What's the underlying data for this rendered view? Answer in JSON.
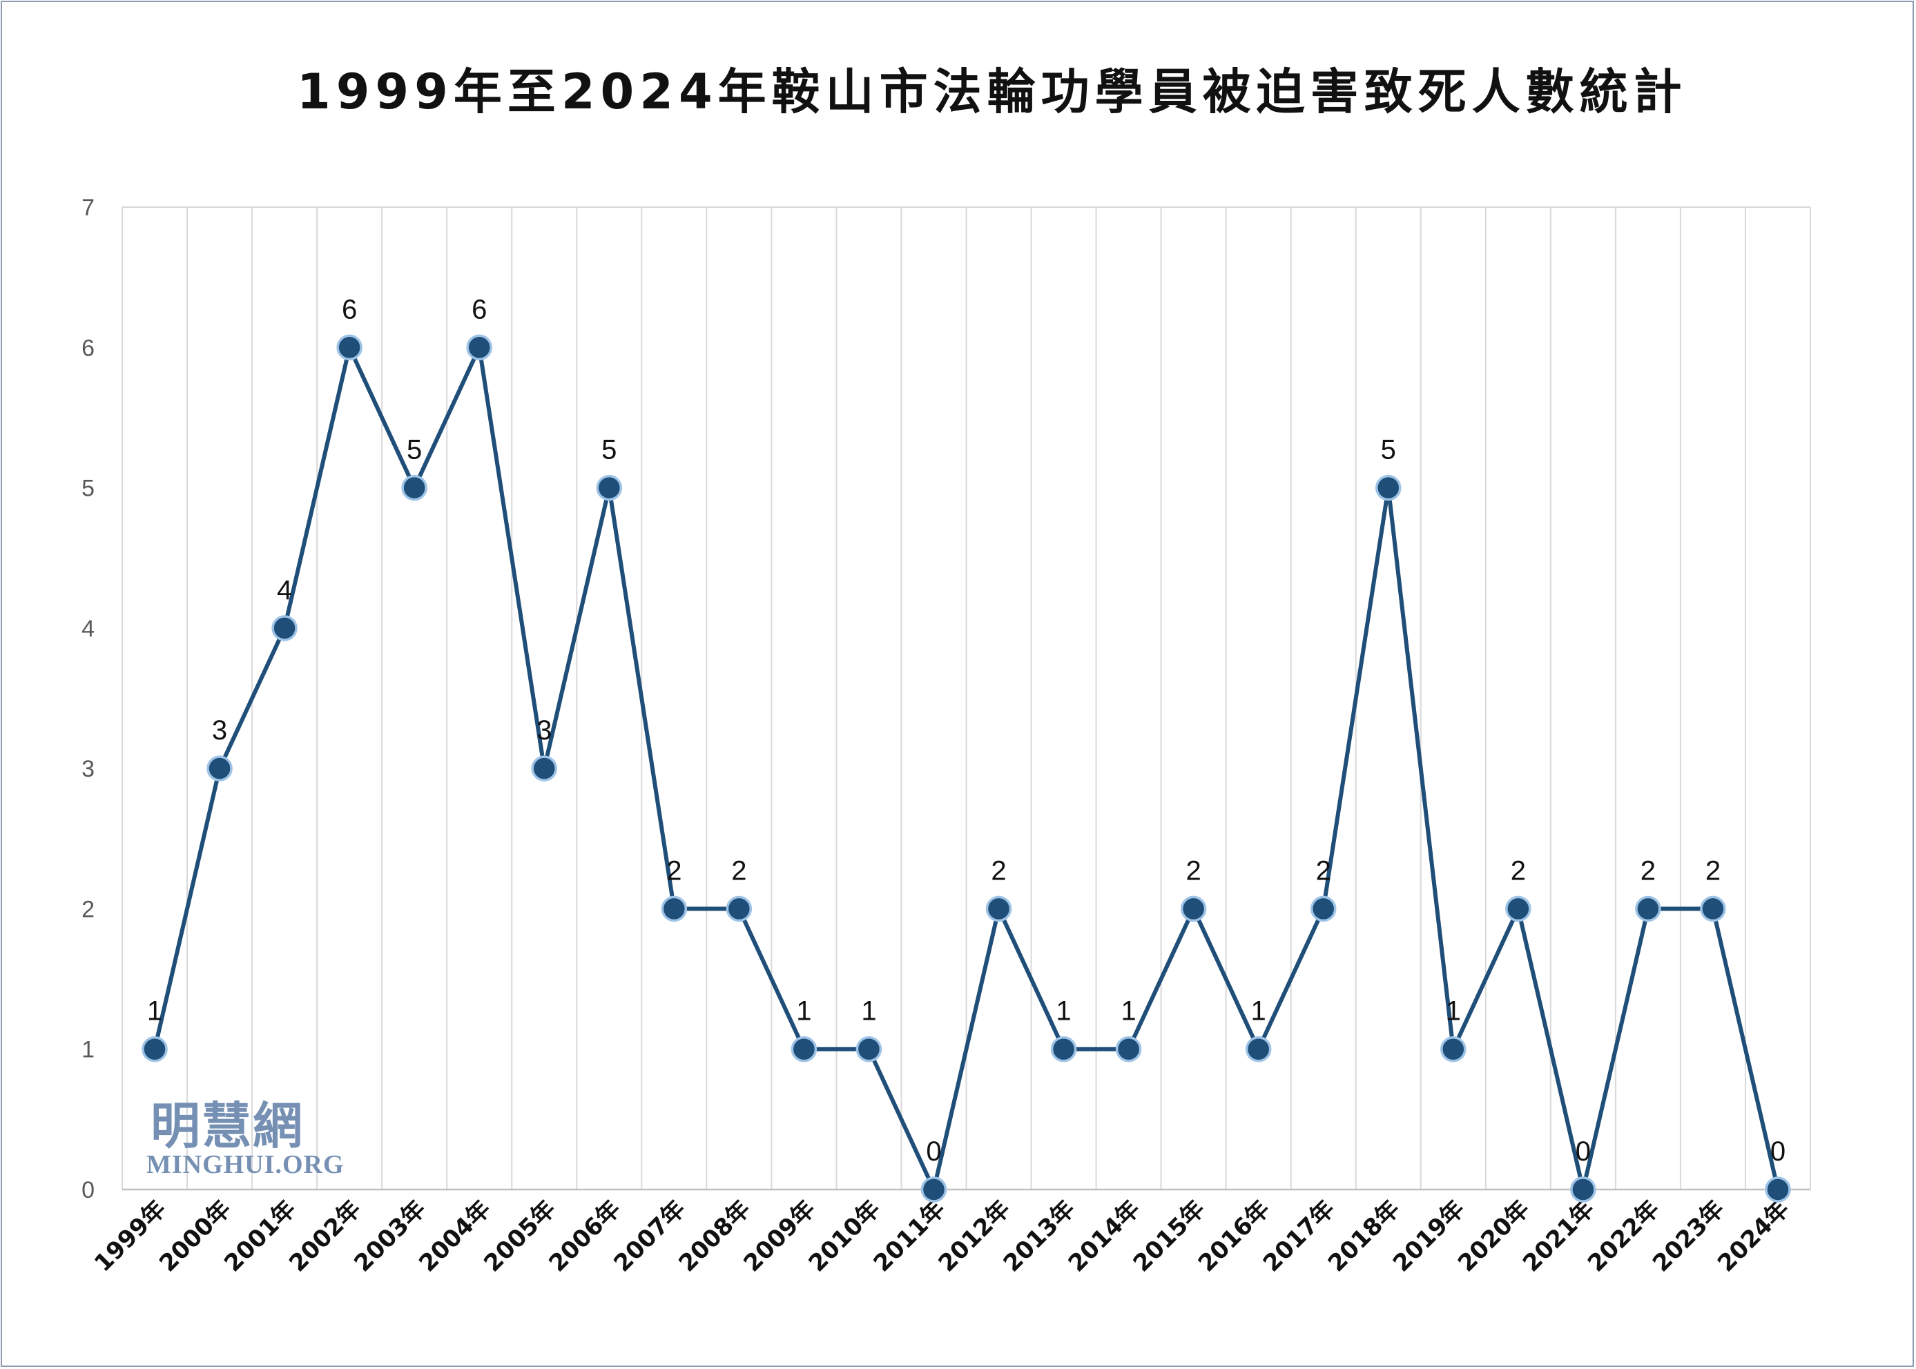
{
  "chart_data": {
    "type": "line",
    "title": "1999年至2024年鞍山市法輪功學員被迫害致死人數統計",
    "categories": [
      "1999年",
      "2000年",
      "2001年",
      "2002年",
      "2003年",
      "2004年",
      "2005年",
      "2006年",
      "2007年",
      "2008年",
      "2009年",
      "2010年",
      "2011年",
      "2012年",
      "2013年",
      "2014年",
      "2015年",
      "2016年",
      "2017年",
      "2018年",
      "2019年",
      "2020年",
      "2021年",
      "2022年",
      "2023年",
      "2024年"
    ],
    "values": [
      1,
      3,
      4,
      6,
      5,
      6,
      3,
      5,
      2,
      2,
      1,
      1,
      0,
      2,
      1,
      1,
      2,
      1,
      2,
      5,
      1,
      2,
      0,
      2,
      2,
      0
    ],
    "ylim": [
      0,
      7
    ],
    "yticks": [
      0,
      1,
      2,
      3,
      4,
      5,
      6,
      7
    ],
    "xlabel": "",
    "ylabel": "",
    "grid": "vertical",
    "data_labels": true,
    "colors": {
      "line": "#1f4e79",
      "marker_fill": "#1f4e79",
      "marker_edge": "#9dc3e6",
      "grid": "#d9d9d9"
    }
  },
  "watermark": {
    "chinese": "明慧網",
    "english": "MINGHUI.ORG"
  }
}
